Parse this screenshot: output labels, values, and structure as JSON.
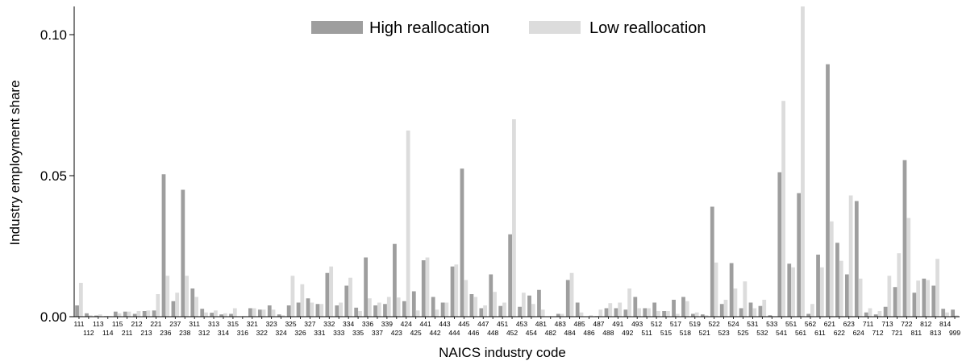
{
  "chart_data": {
    "type": "bar",
    "xlabel": "NAICS industry code",
    "ylabel": "Industry employment share",
    "ylim": [
      0,
      0.11
    ],
    "yticks": [
      0.0,
      0.05,
      0.1
    ],
    "ytick_labels": [
      "0.00",
      "0.05",
      "0.10"
    ],
    "grid": false,
    "legend": "top-center",
    "categories": [
      "111",
      "112",
      "113",
      "114",
      "115",
      "211",
      "212",
      "213",
      "221",
      "236",
      "237",
      "238",
      "311",
      "312",
      "313",
      "314",
      "315",
      "316",
      "321",
      "322",
      "323",
      "324",
      "325",
      "326",
      "327",
      "331",
      "332",
      "333",
      "334",
      "335",
      "336",
      "337",
      "339",
      "423",
      "424",
      "425",
      "441",
      "442",
      "443",
      "444",
      "445",
      "446",
      "447",
      "448",
      "451",
      "452",
      "453",
      "454",
      "481",
      "482",
      "483",
      "484",
      "485",
      "486",
      "487",
      "488",
      "491",
      "492",
      "493",
      "511",
      "512",
      "515",
      "517",
      "518",
      "519",
      "521",
      "522",
      "523",
      "524",
      "525",
      "531",
      "532",
      "533",
      "541",
      "551",
      "561",
      "562",
      "611",
      "621",
      "622",
      "623",
      "624",
      "711",
      "712",
      "713",
      "721",
      "722",
      "811",
      "812",
      "813",
      "814",
      "999"
    ],
    "series": [
      {
        "name": "High reallocation",
        "color": "#9e9e9e",
        "values": [
          0.004,
          0.0012,
          0.0004,
          0.0002,
          0.0018,
          0.0018,
          0.001,
          0.002,
          0.0022,
          0.0505,
          0.0055,
          0.045,
          0.01,
          0.0028,
          0.0014,
          0.0008,
          0.001,
          0.0001,
          0.003,
          0.0025,
          0.004,
          0.0008,
          0.004,
          0.005,
          0.0065,
          0.0045,
          0.0155,
          0.004,
          0.011,
          0.0032,
          0.021,
          0.004,
          0.0045,
          0.0258,
          0.0055,
          0.009,
          0.02,
          0.007,
          0.005,
          0.0178,
          0.0525,
          0.008,
          0.003,
          0.015,
          0.0038,
          0.0292,
          0.0035,
          0.0075,
          0.0095,
          0.0001,
          0.001,
          0.013,
          0.005,
          0.0001,
          0.0002,
          0.003,
          0.003,
          0.0025,
          0.007,
          0.003,
          0.005,
          0.002,
          0.006,
          0.007,
          0.001,
          0.0008,
          0.039,
          0.0045,
          0.019,
          0.003,
          0.005,
          0.0038,
          0.0005,
          0.0512,
          0.0188,
          0.0438,
          0.001,
          0.022,
          0.0895,
          0.0262,
          0.015,
          0.041,
          0.0015,
          0.0008,
          0.0035,
          0.0105,
          0.0555,
          0.0085,
          0.0135,
          0.011,
          0.0028,
          0.0025
        ]
      },
      {
        "name": "Low reallocation",
        "color": "#dcdcdc",
        "values": [
          0.012,
          0.0005,
          0.0008,
          0.0002,
          0.0012,
          0.0018,
          0.002,
          0.0022,
          0.008,
          0.0145,
          0.0085,
          0.0145,
          0.007,
          0.0015,
          0.0022,
          0.0012,
          0.003,
          0.0002,
          0.003,
          0.0025,
          0.0025,
          0.0005,
          0.0145,
          0.0115,
          0.005,
          0.0045,
          0.0178,
          0.005,
          0.0138,
          0.002,
          0.0065,
          0.005,
          0.007,
          0.0068,
          0.066,
          0.0022,
          0.021,
          0.0025,
          0.005,
          0.0185,
          0.013,
          0.007,
          0.004,
          0.0088,
          0.005,
          0.07,
          0.0085,
          0.0045,
          0.0025,
          0.0001,
          0.001,
          0.0155,
          0.0015,
          0.0005,
          0.0025,
          0.0048,
          0.005,
          0.01,
          0.003,
          0.003,
          0.002,
          0.002,
          0.001,
          0.0055,
          0.0015,
          0.0005,
          0.0192,
          0.006,
          0.01,
          0.0125,
          0.003,
          0.006,
          0.0001,
          0.0765,
          0.0175,
          0.11,
          0.0045,
          0.0175,
          0.0338,
          0.0198,
          0.043,
          0.0135,
          0.003,
          0.002,
          0.0145,
          0.0225,
          0.035,
          0.0128,
          0.013,
          0.0205,
          0.0015,
          0.0005
        ]
      }
    ]
  }
}
